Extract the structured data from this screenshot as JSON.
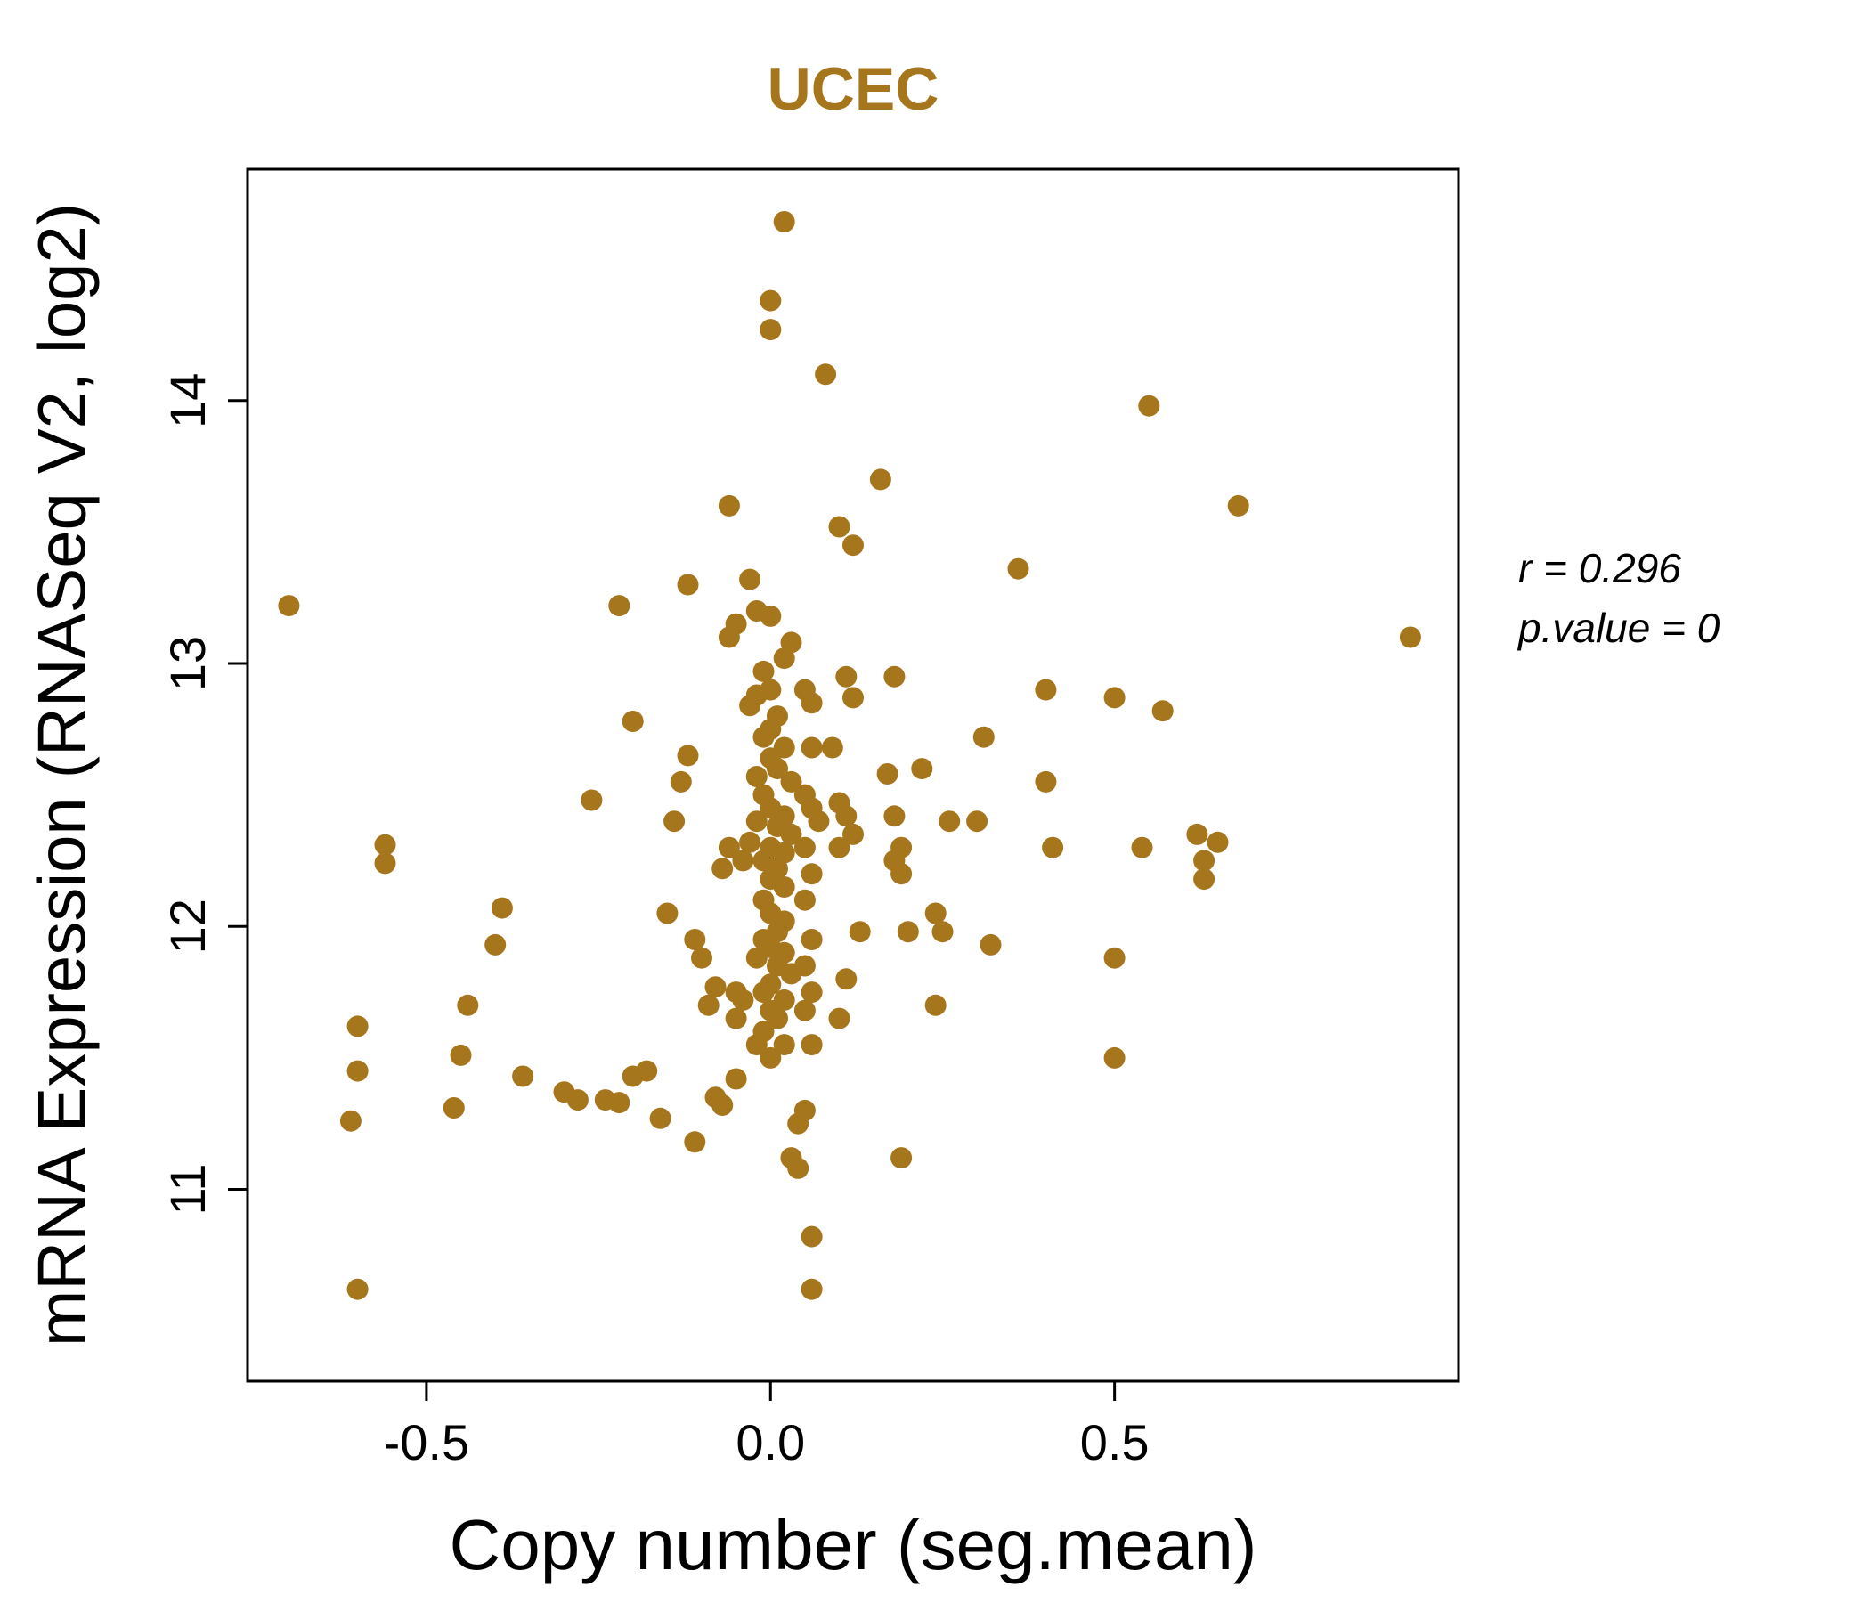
{
  "chart_data": {
    "type": "scatter",
    "title": "UCEC",
    "xlabel": "Copy number (seg.mean)",
    "ylabel": "mRNA Expression (RNASeq V2, log2)",
    "x_ticks": [
      -0.5,
      0.0,
      0.5
    ],
    "y_ticks": [
      11,
      12,
      13,
      14
    ],
    "xlim": [
      -0.76,
      1.0
    ],
    "ylim": [
      10.27,
      14.88
    ],
    "grid": false,
    "legend_position": "none",
    "point_color": "#A6761D",
    "title_color": "#A6761D",
    "axis_color": "#000000",
    "annotation": {
      "r_label": "r = 0.296",
      "p_label": "p.value = 0",
      "r": 0.296,
      "p_value": 0
    },
    "points": [
      [
        -0.7,
        13.22
      ],
      [
        -0.6,
        10.62
      ],
      [
        -0.61,
        11.26
      ],
      [
        -0.6,
        11.45
      ],
      [
        -0.6,
        11.62
      ],
      [
        -0.56,
        12.31
      ],
      [
        -0.56,
        12.24
      ],
      [
        -0.46,
        11.31
      ],
      [
        -0.45,
        11.51
      ],
      [
        -0.44,
        11.7
      ],
      [
        -0.4,
        11.93
      ],
      [
        -0.39,
        12.07
      ],
      [
        -0.36,
        11.43
      ],
      [
        -0.3,
        11.37
      ],
      [
        -0.28,
        11.34
      ],
      [
        -0.26,
        12.48
      ],
      [
        -0.24,
        11.34
      ],
      [
        -0.22,
        11.33
      ],
      [
        -0.22,
        13.22
      ],
      [
        -0.2,
        12.78
      ],
      [
        -0.2,
        11.43
      ],
      [
        -0.18,
        11.45
      ],
      [
        -0.16,
        11.27
      ],
      [
        -0.15,
        12.05
      ],
      [
        -0.14,
        12.4
      ],
      [
        -0.13,
        12.55
      ],
      [
        -0.12,
        12.65
      ],
      [
        -0.12,
        13.3
      ],
      [
        -0.11,
        11.95
      ],
      [
        -0.11,
        11.18
      ],
      [
        -0.1,
        11.88
      ],
      [
        -0.09,
        11.7
      ],
      [
        -0.08,
        11.77
      ],
      [
        -0.08,
        11.35
      ],
      [
        -0.07,
        11.32
      ],
      [
        -0.07,
        12.22
      ],
      [
        -0.06,
        12.3
      ],
      [
        -0.06,
        13.6
      ],
      [
        -0.06,
        13.1
      ],
      [
        -0.05,
        13.15
      ],
      [
        -0.05,
        11.42
      ],
      [
        -0.05,
        11.75
      ],
      [
        -0.05,
        11.65
      ],
      [
        -0.04,
        11.72
      ],
      [
        -0.04,
        12.25
      ],
      [
        -0.03,
        13.32
      ],
      [
        -0.03,
        12.84
      ],
      [
        -0.03,
        12.32
      ],
      [
        -0.02,
        13.2
      ],
      [
        -0.02,
        12.88
      ],
      [
        -0.02,
        12.57
      ],
      [
        -0.02,
        12.4
      ],
      [
        -0.02,
        11.88
      ],
      [
        -0.02,
        11.55
      ],
      [
        -0.01,
        12.97
      ],
      [
        -0.01,
        12.72
      ],
      [
        -0.01,
        12.5
      ],
      [
        -0.01,
        12.25
      ],
      [
        -0.01,
        12.1
      ],
      [
        -0.01,
        11.95
      ],
      [
        -0.01,
        11.75
      ],
      [
        -0.01,
        11.6
      ],
      [
        0.0,
        14.38
      ],
      [
        0.0,
        14.27
      ],
      [
        0.0,
        13.18
      ],
      [
        0.0,
        12.9
      ],
      [
        0.0,
        12.75
      ],
      [
        0.0,
        12.64
      ],
      [
        0.0,
        12.45
      ],
      [
        0.0,
        12.3
      ],
      [
        0.0,
        12.18
      ],
      [
        0.0,
        12.05
      ],
      [
        0.0,
        11.92
      ],
      [
        0.0,
        11.78
      ],
      [
        0.0,
        11.68
      ],
      [
        0.0,
        11.5
      ],
      [
        0.01,
        12.8
      ],
      [
        0.01,
        12.6
      ],
      [
        0.01,
        12.38
      ],
      [
        0.01,
        12.22
      ],
      [
        0.01,
        11.98
      ],
      [
        0.01,
        11.85
      ],
      [
        0.01,
        11.65
      ],
      [
        0.02,
        14.68
      ],
      [
        0.02,
        13.02
      ],
      [
        0.02,
        12.68
      ],
      [
        0.02,
        12.42
      ],
      [
        0.02,
        12.28
      ],
      [
        0.02,
        12.15
      ],
      [
        0.02,
        12.02
      ],
      [
        0.02,
        11.9
      ],
      [
        0.02,
        11.72
      ],
      [
        0.02,
        11.55
      ],
      [
        0.03,
        13.08
      ],
      [
        0.03,
        12.55
      ],
      [
        0.03,
        12.35
      ],
      [
        0.03,
        11.82
      ],
      [
        0.03,
        11.12
      ],
      [
        0.04,
        11.25
      ],
      [
        0.04,
        11.08
      ],
      [
        0.05,
        12.9
      ],
      [
        0.05,
        12.5
      ],
      [
        0.05,
        12.3
      ],
      [
        0.05,
        12.1
      ],
      [
        0.05,
        11.85
      ],
      [
        0.05,
        11.68
      ],
      [
        0.05,
        11.3
      ],
      [
        0.06,
        12.85
      ],
      [
        0.06,
        12.68
      ],
      [
        0.06,
        12.45
      ],
      [
        0.06,
        12.2
      ],
      [
        0.06,
        11.95
      ],
      [
        0.06,
        11.75
      ],
      [
        0.06,
        11.55
      ],
      [
        0.06,
        10.82
      ],
      [
        0.06,
        10.62
      ],
      [
        0.07,
        12.4
      ],
      [
        0.08,
        14.1
      ],
      [
        0.09,
        12.68
      ],
      [
        0.1,
        13.52
      ],
      [
        0.1,
        12.47
      ],
      [
        0.1,
        12.3
      ],
      [
        0.1,
        11.65
      ],
      [
        0.11,
        12.95
      ],
      [
        0.11,
        12.42
      ],
      [
        0.11,
        11.8
      ],
      [
        0.12,
        13.45
      ],
      [
        0.12,
        12.87
      ],
      [
        0.12,
        12.35
      ],
      [
        0.13,
        11.98
      ],
      [
        0.16,
        13.7
      ],
      [
        0.17,
        12.58
      ],
      [
        0.18,
        12.95
      ],
      [
        0.18,
        12.42
      ],
      [
        0.18,
        12.25
      ],
      [
        0.19,
        12.3
      ],
      [
        0.19,
        12.2
      ],
      [
        0.19,
        11.12
      ],
      [
        0.2,
        11.98
      ],
      [
        0.22,
        12.6
      ],
      [
        0.24,
        12.05
      ],
      [
        0.24,
        11.7
      ],
      [
        0.25,
        11.98
      ],
      [
        0.26,
        12.4
      ],
      [
        0.3,
        12.4
      ],
      [
        0.31,
        12.72
      ],
      [
        0.32,
        11.93
      ],
      [
        0.36,
        13.36
      ],
      [
        0.4,
        12.9
      ],
      [
        0.4,
        12.55
      ],
      [
        0.41,
        12.3
      ],
      [
        0.5,
        12.87
      ],
      [
        0.5,
        11.88
      ],
      [
        0.5,
        11.5
      ],
      [
        0.54,
        12.3
      ],
      [
        0.55,
        13.98
      ],
      [
        0.57,
        12.82
      ],
      [
        0.62,
        12.35
      ],
      [
        0.63,
        12.25
      ],
      [
        0.63,
        12.18
      ],
      [
        0.65,
        12.32
      ],
      [
        0.68,
        13.6
      ],
      [
        0.93,
        13.1
      ]
    ]
  }
}
